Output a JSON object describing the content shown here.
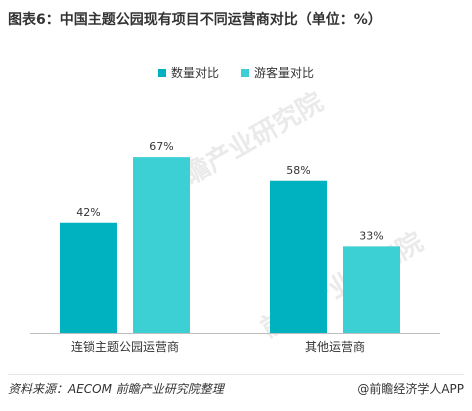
{
  "page": {
    "title": "图表6：中国主题公园现有项目不同运营商对比（单位：%）",
    "source": "资料来源：AECOM 前瞻产业研究院整理",
    "credit": "@前瞻经济学人APP",
    "watermark": "前瞻产业研究院"
  },
  "colors": {
    "count": "#00b2bf",
    "visitors": "#3ccfd4",
    "axis": "#bfbfbf",
    "text": "#333333"
  },
  "chart_data": {
    "type": "bar",
    "categories": [
      "连锁主题公园运营商",
      "其他运营商"
    ],
    "series": [
      {
        "name": "数量对比",
        "values": [
          42,
          58
        ],
        "labels": [
          "42%",
          "58%"
        ]
      },
      {
        "name": "游客量对比",
        "values": [
          67,
          33
        ],
        "labels": [
          "67%",
          "33%"
        ]
      }
    ],
    "ylim": [
      0,
      80
    ],
    "legend": "top-center",
    "grid": false
  }
}
